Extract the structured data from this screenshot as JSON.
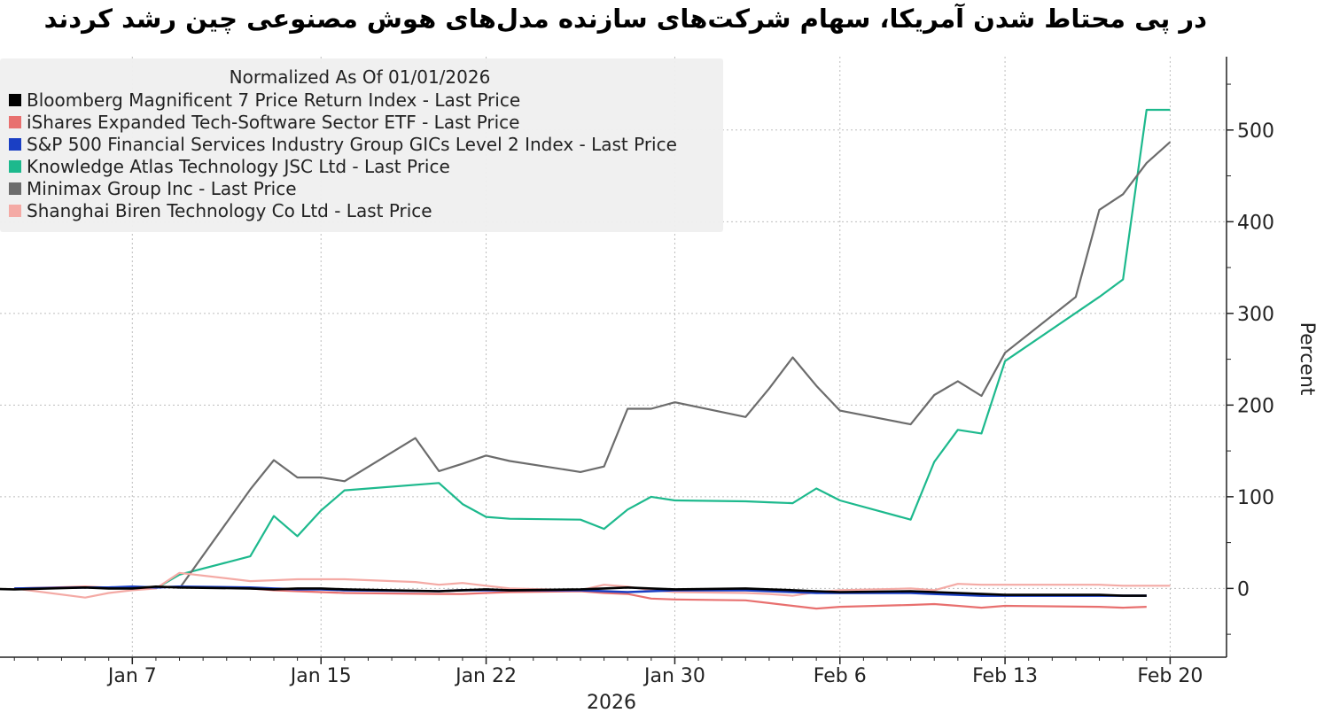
{
  "title": "در پی محتاط شدن آمریکا، سهام شرکت‌های سازنده مدل‌های هوش مصنوعی چین رشد کردند",
  "chart_data": {
    "type": "line",
    "legend_title": "Normalized As Of 01/01/2026",
    "legend_position": "top-left",
    "ylabel": "Percent",
    "xlabel": "2026",
    "ylim": [
      -75,
      580
    ],
    "yticks": [
      0,
      100,
      200,
      300,
      400,
      500
    ],
    "y_axis_side": "right",
    "grid": true,
    "x_tick_dates": [
      "2026-01-07",
      "2026-01-15",
      "2026-01-22",
      "2026-01-30",
      "2026-02-06",
      "2026-02-13",
      "2026-02-20"
    ],
    "x_tick_labels": [
      "Jan 7",
      "Jan 15",
      "Jan 22",
      "Jan 30",
      "Feb 6",
      "Feb 13",
      "Feb 20"
    ],
    "xlim": [
      "2025-12-31",
      "2026-02-21"
    ],
    "series": [
      {
        "name": "Bloomberg Magnificent 7 Price Return Index - Last Price",
        "color": "#000000",
        "x": [
          "2025-12-31",
          "2026-01-02",
          "2026-01-05",
          "2026-01-06",
          "2026-01-07",
          "2026-01-08",
          "2026-01-09",
          "2026-01-12",
          "2026-01-13",
          "2026-01-14",
          "2026-01-15",
          "2026-01-16",
          "2026-01-20",
          "2026-01-21",
          "2026-01-22",
          "2026-01-23",
          "2026-01-26",
          "2026-01-27",
          "2026-01-28",
          "2026-01-29",
          "2026-01-30",
          "2026-02-02",
          "2026-02-03",
          "2026-02-04",
          "2026-02-05",
          "2026-02-06",
          "2026-02-09",
          "2026-02-10",
          "2026-02-11",
          "2026-02-12",
          "2026-02-13",
          "2026-02-17",
          "2026-02-18",
          "2026-02-19"
        ],
        "y": [
          0,
          -1,
          1,
          0,
          0,
          2,
          1,
          0,
          -1,
          0,
          0,
          -1,
          -3,
          -2,
          -1,
          -2,
          -1,
          0,
          1,
          0,
          -1,
          0,
          -1,
          -2,
          -3,
          -4,
          -3,
          -4,
          -5,
          -6,
          -7,
          -7,
          -8,
          -8
        ]
      },
      {
        "name": "iShares Expanded Tech-Software Sector ETF - Last Price",
        "color": "#e8706f",
        "x": [
          "2026-01-02",
          "2026-01-05",
          "2026-01-06",
          "2026-01-07",
          "2026-01-08",
          "2026-01-09",
          "2026-01-12",
          "2026-01-13",
          "2026-01-14",
          "2026-01-15",
          "2026-01-16",
          "2026-01-20",
          "2026-01-21",
          "2026-01-22",
          "2026-01-23",
          "2026-01-26",
          "2026-01-27",
          "2026-01-28",
          "2026-01-29",
          "2026-01-30",
          "2026-02-02",
          "2026-02-03",
          "2026-02-04",
          "2026-02-05",
          "2026-02-06",
          "2026-02-09",
          "2026-02-10",
          "2026-02-11",
          "2026-02-12",
          "2026-02-13",
          "2026-02-17",
          "2026-02-18",
          "2026-02-19"
        ],
        "y": [
          0,
          2,
          1,
          0,
          1,
          2,
          0,
          -2,
          -3,
          -4,
          -5,
          -6,
          -6,
          -5,
          -4,
          -3,
          -5,
          -6,
          -11,
          -12,
          -13,
          -16,
          -19,
          -22,
          -20,
          -18,
          -17,
          -19,
          -21,
          -19,
          -20,
          -21,
          -20
        ]
      },
      {
        "name": "S&P 500 Financial Services Industry Group GICs Level 2 Index - Last Price",
        "color": "#1a3fc4",
        "x": [
          "2026-01-02",
          "2026-01-05",
          "2026-01-06",
          "2026-01-07",
          "2026-01-08",
          "2026-01-09",
          "2026-01-12",
          "2026-01-13",
          "2026-01-14",
          "2026-01-15",
          "2026-01-16",
          "2026-01-20",
          "2026-01-21",
          "2026-01-22",
          "2026-01-23",
          "2026-01-26",
          "2026-01-27",
          "2026-01-28",
          "2026-01-29",
          "2026-01-30",
          "2026-02-02",
          "2026-02-03",
          "2026-02-04",
          "2026-02-05",
          "2026-02-06",
          "2026-02-09",
          "2026-02-10",
          "2026-02-11",
          "2026-02-12",
          "2026-02-13",
          "2026-02-17",
          "2026-02-18",
          "2026-02-19"
        ],
        "y": [
          0,
          1,
          1,
          2,
          1,
          2,
          1,
          0,
          -1,
          -1,
          -2,
          -3,
          -2,
          -2,
          -2,
          -2,
          -3,
          -4,
          -3,
          -2,
          -2,
          -3,
          -4,
          -5,
          -5,
          -5,
          -6,
          -7,
          -8,
          -8,
          -8,
          -8,
          -8
        ]
      },
      {
        "name": "Knowledge Atlas Technology JSC Ltd - Last Price",
        "color": "#1db98d",
        "x": [
          "2026-01-08",
          "2026-01-09",
          "2026-01-12",
          "2026-01-13",
          "2026-01-14",
          "2026-01-15",
          "2026-01-16",
          "2026-01-20",
          "2026-01-21",
          "2026-01-22",
          "2026-01-23",
          "2026-01-26",
          "2026-01-27",
          "2026-01-28",
          "2026-01-29",
          "2026-01-30",
          "2026-02-02",
          "2026-02-03",
          "2026-02-04",
          "2026-02-05",
          "2026-02-06",
          "2026-02-09",
          "2026-02-10",
          "2026-02-11",
          "2026-02-12",
          "2026-02-13",
          "2026-02-17",
          "2026-02-18",
          "2026-02-19",
          "2026-02-20"
        ],
        "y": [
          0,
          15,
          35,
          79,
          57,
          85,
          107,
          115,
          92,
          78,
          76,
          75,
          65,
          86,
          100,
          96,
          95,
          94,
          93,
          109,
          96,
          75,
          138,
          173,
          169,
          248,
          318,
          337,
          522,
          522
        ]
      },
      {
        "name": "Minimax Group Inc - Last Price",
        "color": "#6c6c6c",
        "x": [
          "2026-01-09",
          "2026-01-12",
          "2026-01-13",
          "2026-01-14",
          "2026-01-15",
          "2026-01-16",
          "2026-01-19",
          "2026-01-20",
          "2026-01-21",
          "2026-01-22",
          "2026-01-23",
          "2026-01-26",
          "2026-01-27",
          "2026-01-28",
          "2026-01-29",
          "2026-01-30",
          "2026-02-02",
          "2026-02-03",
          "2026-02-04",
          "2026-02-05",
          "2026-02-06",
          "2026-02-09",
          "2026-02-10",
          "2026-02-11",
          "2026-02-12",
          "2026-02-13",
          "2026-02-16",
          "2026-02-17",
          "2026-02-18",
          "2026-02-19",
          "2026-02-20"
        ],
        "y": [
          0,
          108,
          140,
          121,
          121,
          117,
          164,
          128,
          136,
          145,
          139,
          127,
          133,
          196,
          196,
          203,
          187,
          218,
          252,
          221,
          194,
          179,
          211,
          226,
          210,
          257,
          318,
          413,
          430,
          464,
          487
        ]
      },
      {
        "name": "Shanghai Biren Technology Co Ltd - Last Price",
        "color": "#f4aaa5",
        "x": [
          "2026-01-02",
          "2026-01-05",
          "2026-01-06",
          "2026-01-07",
          "2026-01-08",
          "2026-01-09",
          "2026-01-12",
          "2026-01-13",
          "2026-01-14",
          "2026-01-15",
          "2026-01-16",
          "2026-01-19",
          "2026-01-20",
          "2026-01-21",
          "2026-01-22",
          "2026-01-23",
          "2026-01-26",
          "2026-01-27",
          "2026-01-28",
          "2026-01-29",
          "2026-01-30",
          "2026-02-02",
          "2026-02-03",
          "2026-02-04",
          "2026-02-05",
          "2026-02-06",
          "2026-02-09",
          "2026-02-10",
          "2026-02-11",
          "2026-02-12",
          "2026-02-13",
          "2026-02-16",
          "2026-02-17",
          "2026-02-18",
          "2026-02-19",
          "2026-02-20"
        ],
        "y": [
          0,
          -10,
          -5,
          -2,
          0,
          17,
          8,
          9,
          10,
          10,
          10,
          7,
          4,
          6,
          3,
          0,
          -2,
          4,
          2,
          -2,
          -4,
          -5,
          -6,
          -8,
          -4,
          -2,
          0,
          -2,
          5,
          4,
          4,
          4,
          4,
          3,
          3,
          3
        ]
      }
    ]
  }
}
